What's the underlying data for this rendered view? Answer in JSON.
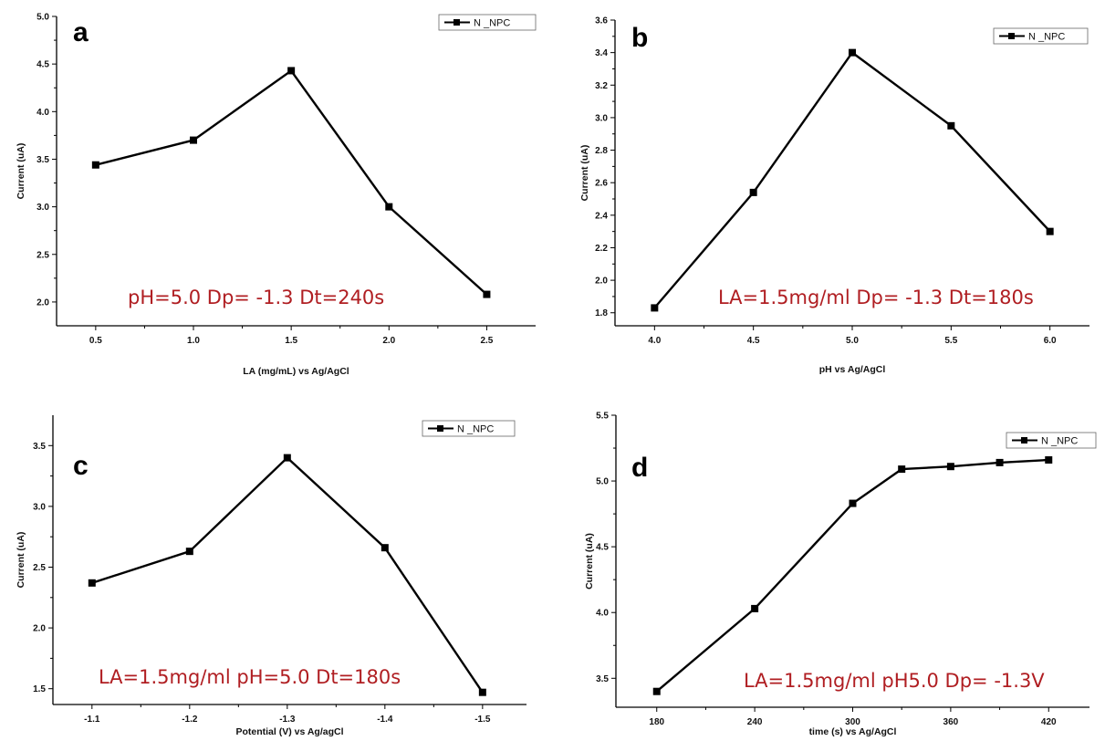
{
  "colors": {
    "line": "#000000",
    "annotation": "#b01e22"
  },
  "chart_data": [
    {
      "type": "line",
      "panel_label": "a",
      "x": [
        0.5,
        1.0,
        1.5,
        2.0,
        2.5
      ],
      "series": [
        {
          "name": "N _NPC",
          "values": [
            3.44,
            3.7,
            4.43,
            3.0,
            2.08
          ]
        }
      ],
      "xlabel": "LA (mg/mL)  vs Ag/AgCl",
      "ylabel": "Current (uA)",
      "xlim": [
        0.3,
        2.75
      ],
      "ylim": [
        1.75,
        5.0
      ],
      "xticks": [
        0.5,
        1.0,
        1.5,
        2.0,
        2.5
      ],
      "xtick_labels": [
        "0.5",
        "1.0",
        "1.5",
        "2.0",
        "2.5"
      ],
      "yticks": [
        2.0,
        2.5,
        3.0,
        3.5,
        4.0,
        4.5,
        5.0
      ],
      "ytick_labels": [
        "2.0",
        "2.5",
        "3.0",
        "3.5",
        "4.0",
        "4.5",
        "5.0"
      ],
      "annotation": "pH=5.0  Dp= -1.3 Dt=240s",
      "legend": "top-right"
    },
    {
      "type": "line",
      "panel_label": "b",
      "x": [
        4.0,
        4.5,
        5.0,
        5.5,
        6.0
      ],
      "series": [
        {
          "name": "N _NPC",
          "values": [
            1.83,
            2.54,
            3.4,
            2.95,
            2.3
          ]
        }
      ],
      "xlabel": "pH vs Ag/AgCl",
      "ylabel": "Current (uA)",
      "xlim": [
        3.8,
        6.2
      ],
      "ylim": [
        1.72,
        3.6
      ],
      "xticks": [
        4.0,
        4.5,
        5.0,
        5.5,
        6.0
      ],
      "xtick_labels": [
        "4.0",
        "4.5",
        "5.0",
        "5.5",
        "6.0"
      ],
      "yticks": [
        1.8,
        2.0,
        2.2,
        2.4,
        2.6,
        2.8,
        3.0,
        3.2,
        3.4,
        3.6
      ],
      "ytick_labels": [
        "1.8",
        "2.0",
        "2.2",
        "2.4",
        "2.6",
        "2.8",
        "3.0",
        "3.2",
        "3.4",
        "3.6"
      ],
      "annotation": "LA=1.5mg/ml  Dp= -1.3 Dt=180s",
      "legend": "top-right"
    },
    {
      "type": "line",
      "panel_label": "c",
      "x": [
        -1.1,
        -1.2,
        -1.3,
        -1.4,
        -1.5
      ],
      "series": [
        {
          "name": "N _NPC",
          "values": [
            2.37,
            2.63,
            3.4,
            2.66,
            1.47
          ]
        }
      ],
      "xlabel": "Potential (V) vs Ag/agCl",
      "ylabel": "Current (uA)",
      "xlim": [
        -1.06,
        -1.545
      ],
      "ylim": [
        1.37,
        3.75
      ],
      "xticks": [
        -1.1,
        -1.2,
        -1.3,
        -1.4,
        -1.5
      ],
      "xtick_labels": [
        "-1.1",
        "-1.2",
        "-1.3",
        "-1.4",
        "-1.5"
      ],
      "yticks": [
        1.5,
        2.0,
        2.5,
        3.0,
        3.5
      ],
      "ytick_labels": [
        "1.5",
        "2.0",
        "2.5",
        "3.0",
        "3.5"
      ],
      "annotation": "LA=1.5mg/ml  pH=5.0 Dt=180s",
      "legend": "top-right"
    },
    {
      "type": "line",
      "panel_label": "d",
      "x": [
        180,
        240,
        300,
        330,
        360,
        390,
        420
      ],
      "series": [
        {
          "name": "N _NPC",
          "values": [
            3.4,
            4.03,
            4.83,
            5.09,
            5.11,
            5.14,
            5.16
          ]
        }
      ],
      "xlabel": "time (s) vs Ag/AgCl",
      "ylabel": "Current (uA)",
      "xlim": [
        155,
        445
      ],
      "ylim": [
        3.28,
        5.5
      ],
      "xticks": [
        180,
        240,
        300,
        360,
        420
      ],
      "xtick_labels": [
        "180",
        "240",
        "300",
        "360",
        "420"
      ],
      "yticks": [
        3.5,
        4.0,
        4.5,
        5.0,
        5.5
      ],
      "ytick_labels": [
        "3.5",
        "4.0",
        "4.5",
        "5.0",
        "5.5"
      ],
      "annotation": "LA=1.5mg/ml  pH5.0 Dp= -1.3V",
      "legend": "top-right"
    }
  ]
}
